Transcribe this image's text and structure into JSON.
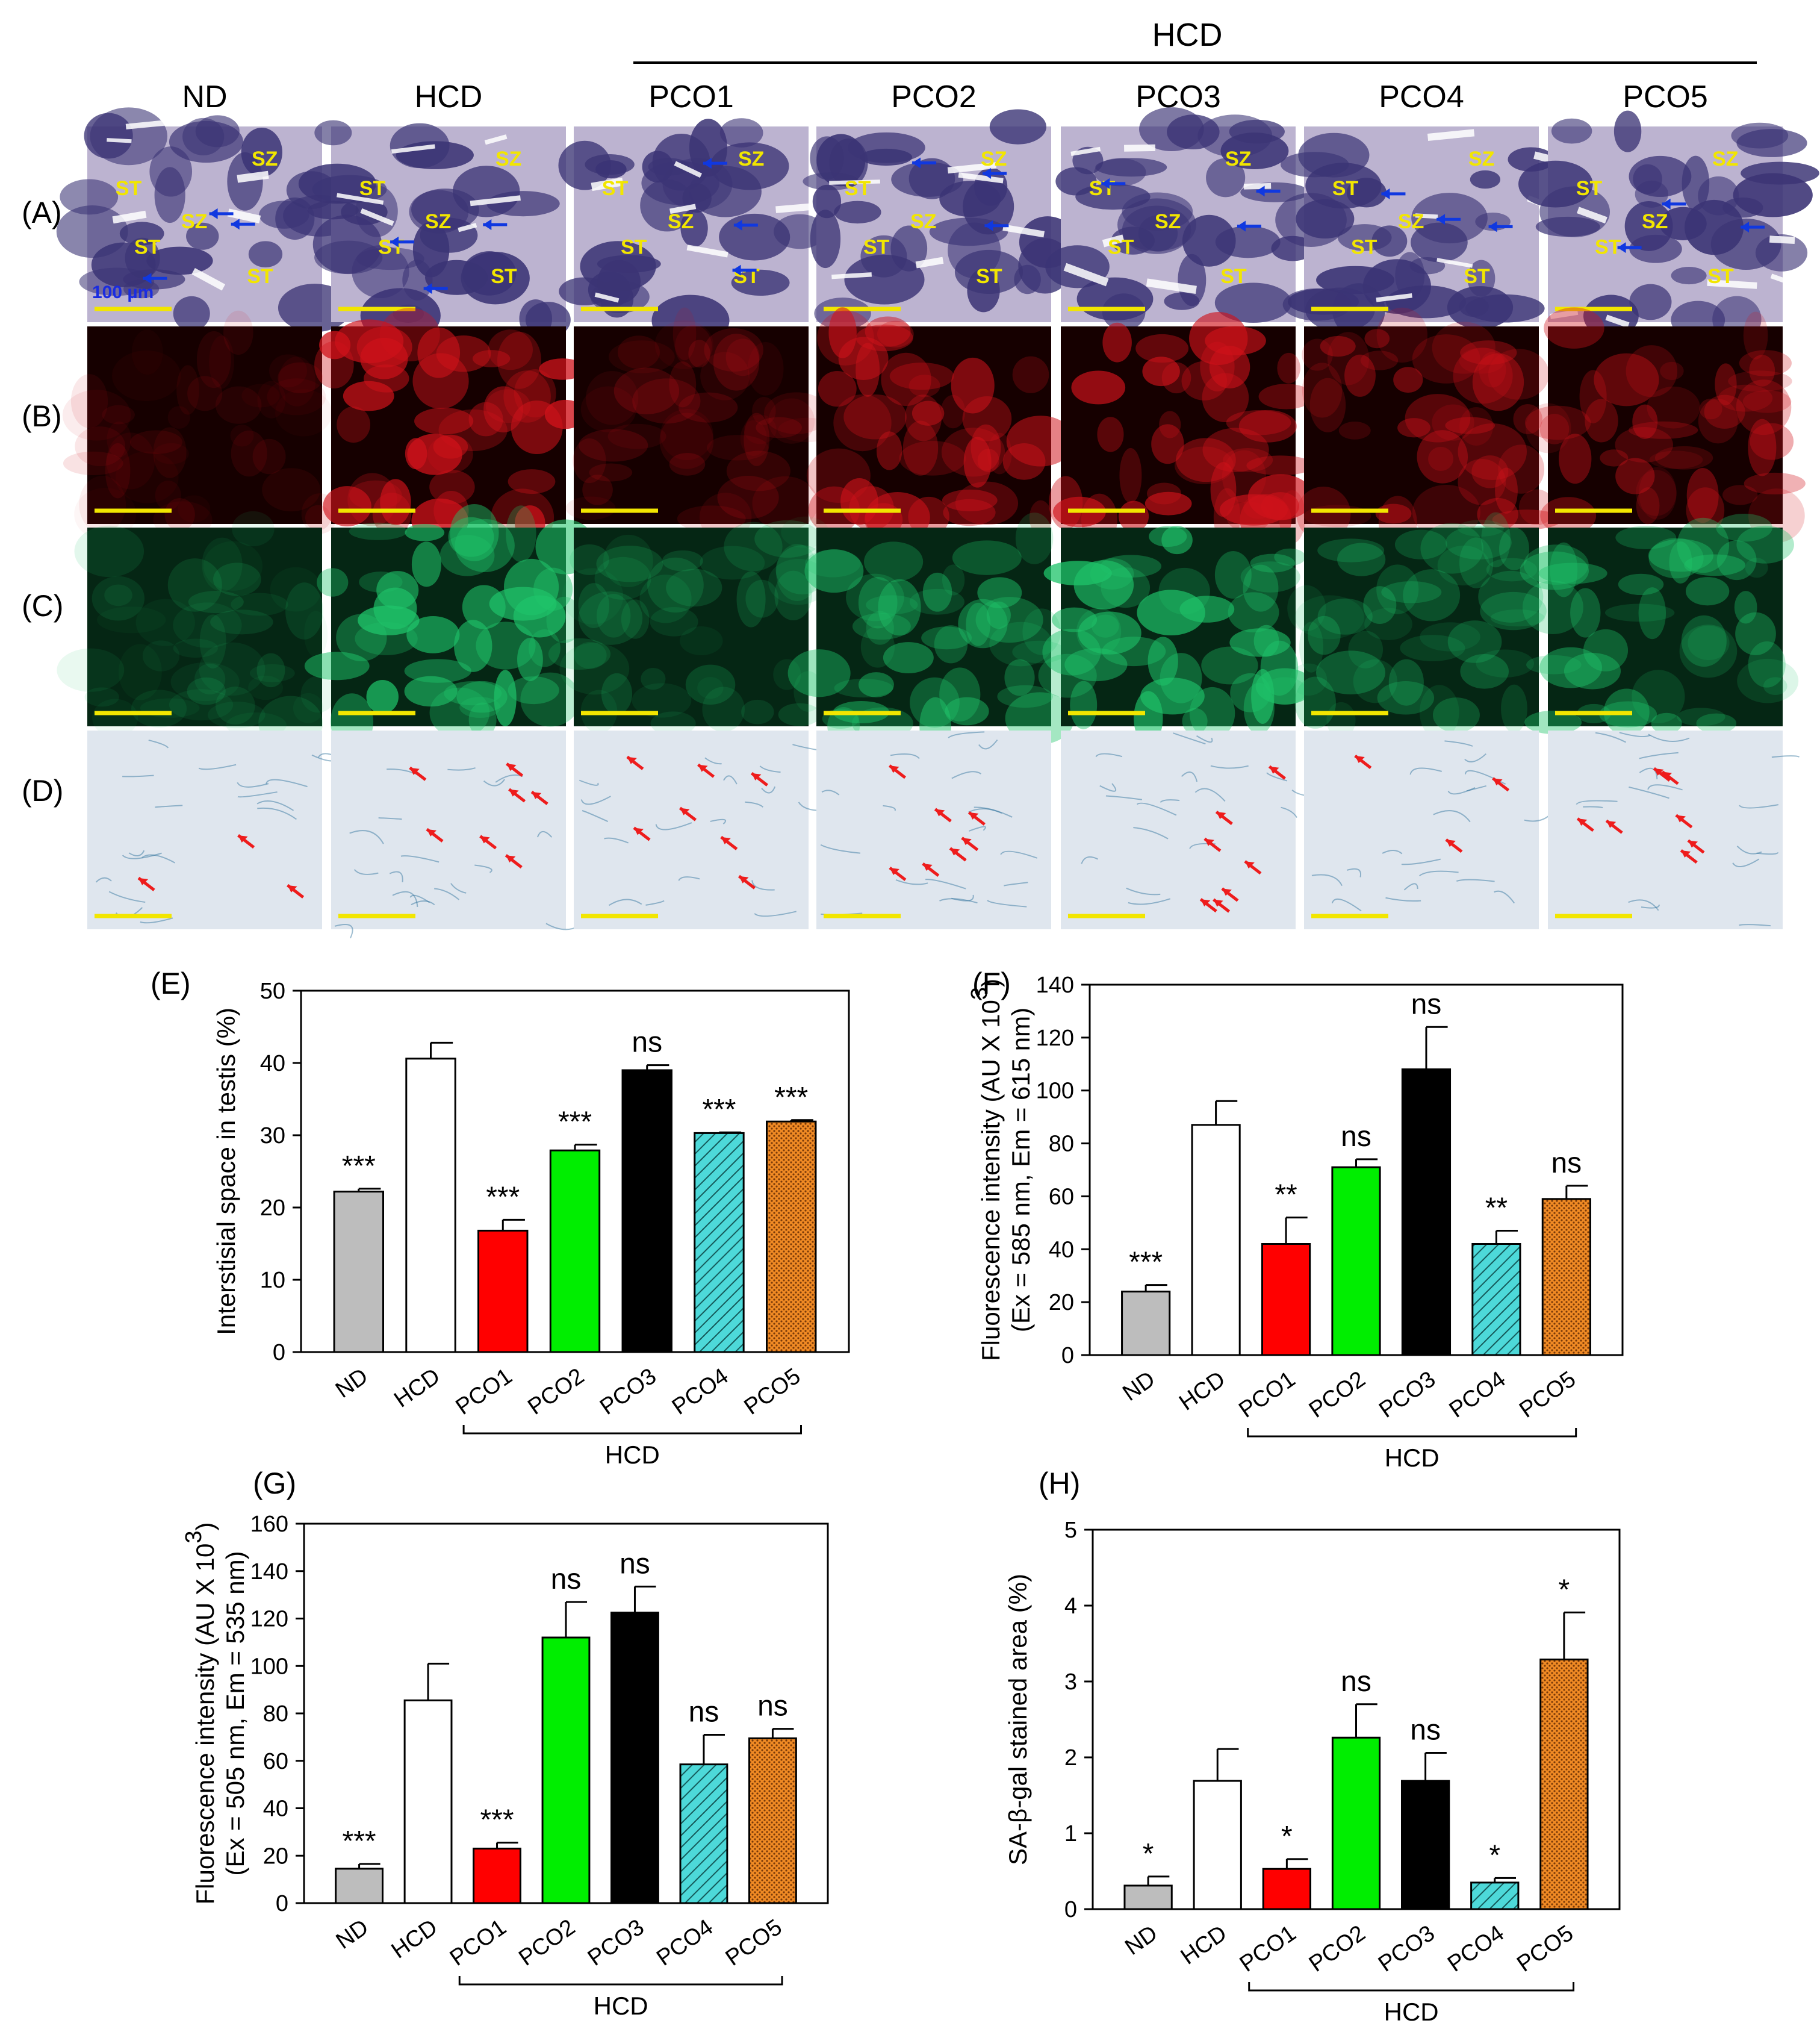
{
  "micrographs": {
    "columns": [
      "ND",
      "HCD",
      "PCO1",
      "PCO2",
      "PCO3",
      "PCO4",
      "PCO5"
    ],
    "group_label": "HCD",
    "rows": [
      "(A)",
      "(B)",
      "(C)",
      "(D)"
    ],
    "scale_label": "100 µm",
    "region_labels": [
      "ST",
      "SZ"
    ],
    "colors": {
      "he_background": "#bfb5cf",
      "he_cells": "#3b3475",
      "b_stain": "#d0121a",
      "c_stain": "#1fc46a",
      "d_stain": "#2b6f98",
      "scale_bar": "#f2e600",
      "arrow_blue": "#1038e0",
      "arrow_red": "#ee1c1c"
    }
  },
  "chart_data": [
    {
      "panel": "(E)",
      "type": "bar",
      "categories": [
        "ND",
        "HCD",
        "PCO1",
        "PCO2",
        "PCO3",
        "PCO4",
        "PCO5"
      ],
      "values": [
        22.2,
        40.6,
        16.8,
        27.9,
        39.0,
        30.3,
        31.9
      ],
      "errors": [
        0.4,
        2.2,
        1.5,
        0.8,
        0.7,
        0.1,
        0.2
      ],
      "annotations": [
        "***",
        "",
        "***",
        "***",
        "ns",
        "***",
        "***"
      ],
      "ylabel": "Interstisial space in testis (%)",
      "ylim": [
        0,
        50
      ],
      "yticks": [
        0,
        10,
        20,
        30,
        40,
        50
      ],
      "group_label": "HCD"
    },
    {
      "panel": "(F)",
      "type": "bar",
      "categories": [
        "ND",
        "HCD",
        "PCO1",
        "PCO2",
        "PCO3",
        "PCO4",
        "PCO5"
      ],
      "values": [
        24,
        87,
        42,
        71,
        108,
        42,
        59
      ],
      "errors": [
        2.5,
        9,
        10,
        3,
        16,
        5,
        5
      ],
      "annotations": [
        "***",
        "",
        "**",
        "ns",
        "ns",
        "**",
        "ns"
      ],
      "ylabel_main": "Fluorescence intensity (AU X 10",
      "ylabel_sup": "3",
      "ylabel_close": ")",
      "ylabel_line2": "(Ex = 585 nm, Em = 615 nm)",
      "ylim": [
        0,
        140
      ],
      "yticks": [
        0,
        20,
        40,
        60,
        80,
        100,
        120,
        140
      ],
      "group_label": "HCD"
    },
    {
      "panel": "(G)",
      "type": "bar",
      "categories": [
        "ND",
        "HCD",
        "PCO1",
        "PCO2",
        "PCO3",
        "PCO4",
        "PCO5"
      ],
      "values": [
        14.5,
        85.5,
        23,
        112,
        122.5,
        58.5,
        69.5
      ],
      "errors": [
        2,
        15.5,
        2.5,
        15,
        11,
        12.5,
        4
      ],
      "annotations": [
        "***",
        "",
        "***",
        "ns",
        "ns",
        "ns",
        "ns"
      ],
      "ylabel_main": "Fluorescence intensity (AU X 10",
      "ylabel_sup": "3",
      "ylabel_close": ")",
      "ylabel_line2": "(Ex = 505 nm, Em = 535 nm)",
      "ylim": [
        0,
        160
      ],
      "yticks": [
        0,
        20,
        40,
        60,
        80,
        100,
        120,
        140,
        160
      ],
      "group_label": "HCD"
    },
    {
      "panel": "(H)",
      "type": "bar",
      "categories": [
        "ND",
        "HCD",
        "PCO1",
        "PCO2",
        "PCO3",
        "PCO4",
        "PCO5"
      ],
      "values": [
        0.31,
        1.69,
        0.53,
        2.26,
        1.69,
        0.35,
        3.29
      ],
      "errors": [
        0.12,
        0.42,
        0.13,
        0.44,
        0.37,
        0.06,
        0.62
      ],
      "annotations": [
        "*",
        "",
        "*",
        "ns",
        "ns",
        "*",
        "*"
      ],
      "ylabel": "SA-β-gal stained area (%)",
      "ylim": [
        0,
        5
      ],
      "yticks": [
        0,
        1,
        2,
        3,
        4,
        5
      ],
      "group_label": "HCD"
    }
  ],
  "bar_styles": [
    {
      "fill": "#bdbdbd",
      "pattern": "none"
    },
    {
      "fill": "#ffffff",
      "pattern": "none"
    },
    {
      "fill": "#ff0000",
      "pattern": "none"
    },
    {
      "fill": "#00ee00",
      "pattern": "none"
    },
    {
      "fill": "#000000",
      "pattern": "none"
    },
    {
      "fill": "#4dd9d9",
      "pattern": "hatch"
    },
    {
      "fill": "#f08a24",
      "pattern": "dots"
    }
  ]
}
